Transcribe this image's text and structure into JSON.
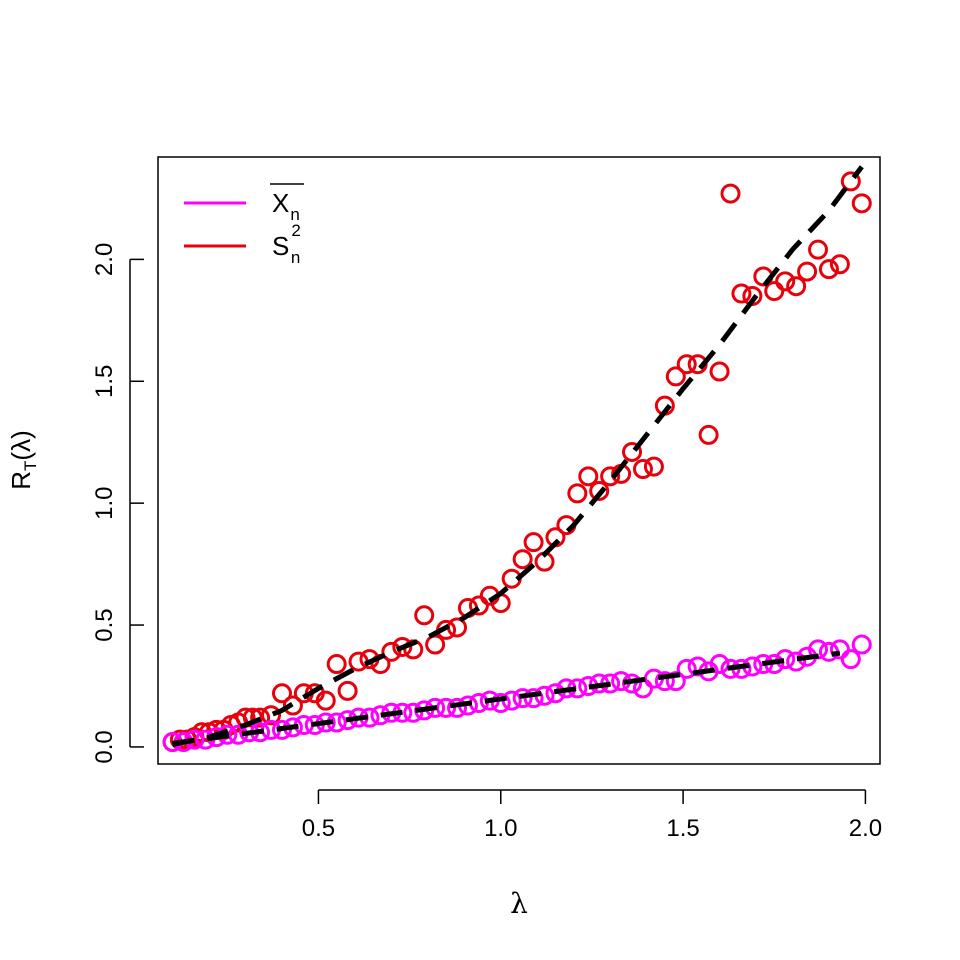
{
  "chart_data": {
    "type": "scatter",
    "xlabel": "λ",
    "ylabel": {
      "base": "R",
      "sub": "T",
      "arg": "(λ)"
    },
    "xlim": [
      0.06,
      2.04
    ],
    "ylim": [
      -0.07,
      2.42
    ],
    "x_ticks": [
      {
        "value": 0.5,
        "label": "0.5"
      },
      {
        "value": 1.0,
        "label": "1.0"
      },
      {
        "value": 1.5,
        "label": "1.5"
      },
      {
        "value": 2.0,
        "label": "2.0"
      }
    ],
    "y_ticks": [
      {
        "value": 0.0,
        "label": "0.0"
      },
      {
        "value": 0.5,
        "label": "0.5"
      },
      {
        "value": 1.0,
        "label": "1.0"
      },
      {
        "value": 1.5,
        "label": "1.5"
      },
      {
        "value": 2.0,
        "label": "2.0"
      }
    ],
    "legend": {
      "position": "top-left",
      "entries": [
        {
          "series": "xbar",
          "base": "X",
          "sub": "n",
          "sup": "",
          "overline": true
        },
        {
          "series": "s2",
          "base": "S",
          "sub": "n",
          "sup": "2",
          "overline": false
        }
      ]
    },
    "series": [
      {
        "id": "s2",
        "color": "#e8000b",
        "marker": "open-circle",
        "points": [
          [
            0.1,
            0.02
          ],
          [
            0.12,
            0.03
          ],
          [
            0.14,
            0.03
          ],
          [
            0.16,
            0.04
          ],
          [
            0.18,
            0.06
          ],
          [
            0.2,
            0.06
          ],
          [
            0.22,
            0.07
          ],
          [
            0.24,
            0.07
          ],
          [
            0.26,
            0.09
          ],
          [
            0.28,
            0.1
          ],
          [
            0.3,
            0.12
          ],
          [
            0.32,
            0.12
          ],
          [
            0.34,
            0.12
          ],
          [
            0.37,
            0.13
          ],
          [
            0.4,
            0.22
          ],
          [
            0.43,
            0.17
          ],
          [
            0.46,
            0.22
          ],
          [
            0.49,
            0.22
          ],
          [
            0.52,
            0.19
          ],
          [
            0.55,
            0.34
          ],
          [
            0.58,
            0.23
          ],
          [
            0.61,
            0.35
          ],
          [
            0.64,
            0.36
          ],
          [
            0.67,
            0.34
          ],
          [
            0.7,
            0.39
          ],
          [
            0.73,
            0.41
          ],
          [
            0.76,
            0.4
          ],
          [
            0.79,
            0.54
          ],
          [
            0.82,
            0.42
          ],
          [
            0.85,
            0.48
          ],
          [
            0.88,
            0.49
          ],
          [
            0.91,
            0.57
          ],
          [
            0.94,
            0.58
          ],
          [
            0.97,
            0.62
          ],
          [
            1.0,
            0.59
          ],
          [
            1.03,
            0.69
          ],
          [
            1.06,
            0.77
          ],
          [
            1.09,
            0.84
          ],
          [
            1.12,
            0.76
          ],
          [
            1.15,
            0.86
          ],
          [
            1.18,
            0.91
          ],
          [
            1.21,
            1.04
          ],
          [
            1.24,
            1.11
          ],
          [
            1.27,
            1.05
          ],
          [
            1.3,
            1.11
          ],
          [
            1.33,
            1.12
          ],
          [
            1.36,
            1.21
          ],
          [
            1.39,
            1.14
          ],
          [
            1.42,
            1.15
          ],
          [
            1.45,
            1.4
          ],
          [
            1.48,
            1.52
          ],
          [
            1.51,
            1.57
          ],
          [
            1.54,
            1.57
          ],
          [
            1.57,
            1.28
          ],
          [
            1.6,
            1.54
          ],
          [
            1.63,
            2.27
          ],
          [
            1.66,
            1.86
          ],
          [
            1.69,
            1.85
          ],
          [
            1.72,
            1.93
          ],
          [
            1.75,
            1.87
          ],
          [
            1.78,
            1.91
          ],
          [
            1.81,
            1.89
          ],
          [
            1.84,
            1.95
          ],
          [
            1.87,
            2.04
          ],
          [
            1.9,
            1.96
          ],
          [
            1.93,
            1.98
          ],
          [
            1.96,
            2.32
          ],
          [
            1.99,
            2.23
          ]
        ]
      },
      {
        "id": "xbar",
        "color": "#ff00ff",
        "marker": "open-circle",
        "points": [
          [
            0.1,
            0.02
          ],
          [
            0.13,
            0.02
          ],
          [
            0.16,
            0.03
          ],
          [
            0.19,
            0.03
          ],
          [
            0.22,
            0.04
          ],
          [
            0.25,
            0.05
          ],
          [
            0.28,
            0.05
          ],
          [
            0.31,
            0.06
          ],
          [
            0.34,
            0.06
          ],
          [
            0.37,
            0.07
          ],
          [
            0.4,
            0.07
          ],
          [
            0.43,
            0.08
          ],
          [
            0.46,
            0.09
          ],
          [
            0.49,
            0.09
          ],
          [
            0.52,
            0.1
          ],
          [
            0.55,
            0.1
          ],
          [
            0.58,
            0.11
          ],
          [
            0.61,
            0.12
          ],
          [
            0.64,
            0.12
          ],
          [
            0.67,
            0.13
          ],
          [
            0.7,
            0.14
          ],
          [
            0.73,
            0.14
          ],
          [
            0.76,
            0.14
          ],
          [
            0.79,
            0.15
          ],
          [
            0.82,
            0.16
          ],
          [
            0.85,
            0.16
          ],
          [
            0.88,
            0.16
          ],
          [
            0.91,
            0.17
          ],
          [
            0.94,
            0.18
          ],
          [
            0.97,
            0.19
          ],
          [
            1.0,
            0.18
          ],
          [
            1.03,
            0.19
          ],
          [
            1.06,
            0.2
          ],
          [
            1.09,
            0.2
          ],
          [
            1.12,
            0.21
          ],
          [
            1.15,
            0.22
          ],
          [
            1.18,
            0.24
          ],
          [
            1.21,
            0.24
          ],
          [
            1.24,
            0.25
          ],
          [
            1.27,
            0.26
          ],
          [
            1.3,
            0.26
          ],
          [
            1.33,
            0.27
          ],
          [
            1.36,
            0.26
          ],
          [
            1.39,
            0.24
          ],
          [
            1.42,
            0.28
          ],
          [
            1.45,
            0.27
          ],
          [
            1.48,
            0.27
          ],
          [
            1.51,
            0.32
          ],
          [
            1.54,
            0.33
          ],
          [
            1.57,
            0.31
          ],
          [
            1.6,
            0.34
          ],
          [
            1.63,
            0.32
          ],
          [
            1.66,
            0.32
          ],
          [
            1.69,
            0.33
          ],
          [
            1.72,
            0.34
          ],
          [
            1.75,
            0.34
          ],
          [
            1.78,
            0.36
          ],
          [
            1.81,
            0.35
          ],
          [
            1.84,
            0.37
          ],
          [
            1.87,
            0.4
          ],
          [
            1.9,
            0.39
          ],
          [
            1.93,
            0.4
          ],
          [
            1.96,
            0.36
          ],
          [
            1.99,
            0.42
          ]
        ]
      }
    ],
    "fit_curves": [
      {
        "for_series": "s2",
        "color": "#000000",
        "style": "dashed",
        "points": [
          [
            0.1,
            0.01
          ],
          [
            0.2,
            0.04
          ],
          [
            0.3,
            0.09
          ],
          [
            0.4,
            0.15
          ],
          [
            0.5,
            0.24
          ],
          [
            0.6,
            0.32
          ],
          [
            0.7,
            0.39
          ],
          [
            0.8,
            0.45
          ],
          [
            0.9,
            0.53
          ],
          [
            1.0,
            0.63
          ],
          [
            1.1,
            0.76
          ],
          [
            1.2,
            0.91
          ],
          [
            1.3,
            1.09
          ],
          [
            1.4,
            1.28
          ],
          [
            1.5,
            1.47
          ],
          [
            1.6,
            1.65
          ],
          [
            1.7,
            1.85
          ],
          [
            1.8,
            2.04
          ],
          [
            1.9,
            2.2
          ],
          [
            1.99,
            2.38
          ]
        ]
      },
      {
        "for_series": "xbar",
        "color": "#000000",
        "style": "dashed",
        "points": [
          [
            0.1,
            0.015
          ],
          [
            1.93,
            0.385
          ]
        ]
      }
    ]
  }
}
